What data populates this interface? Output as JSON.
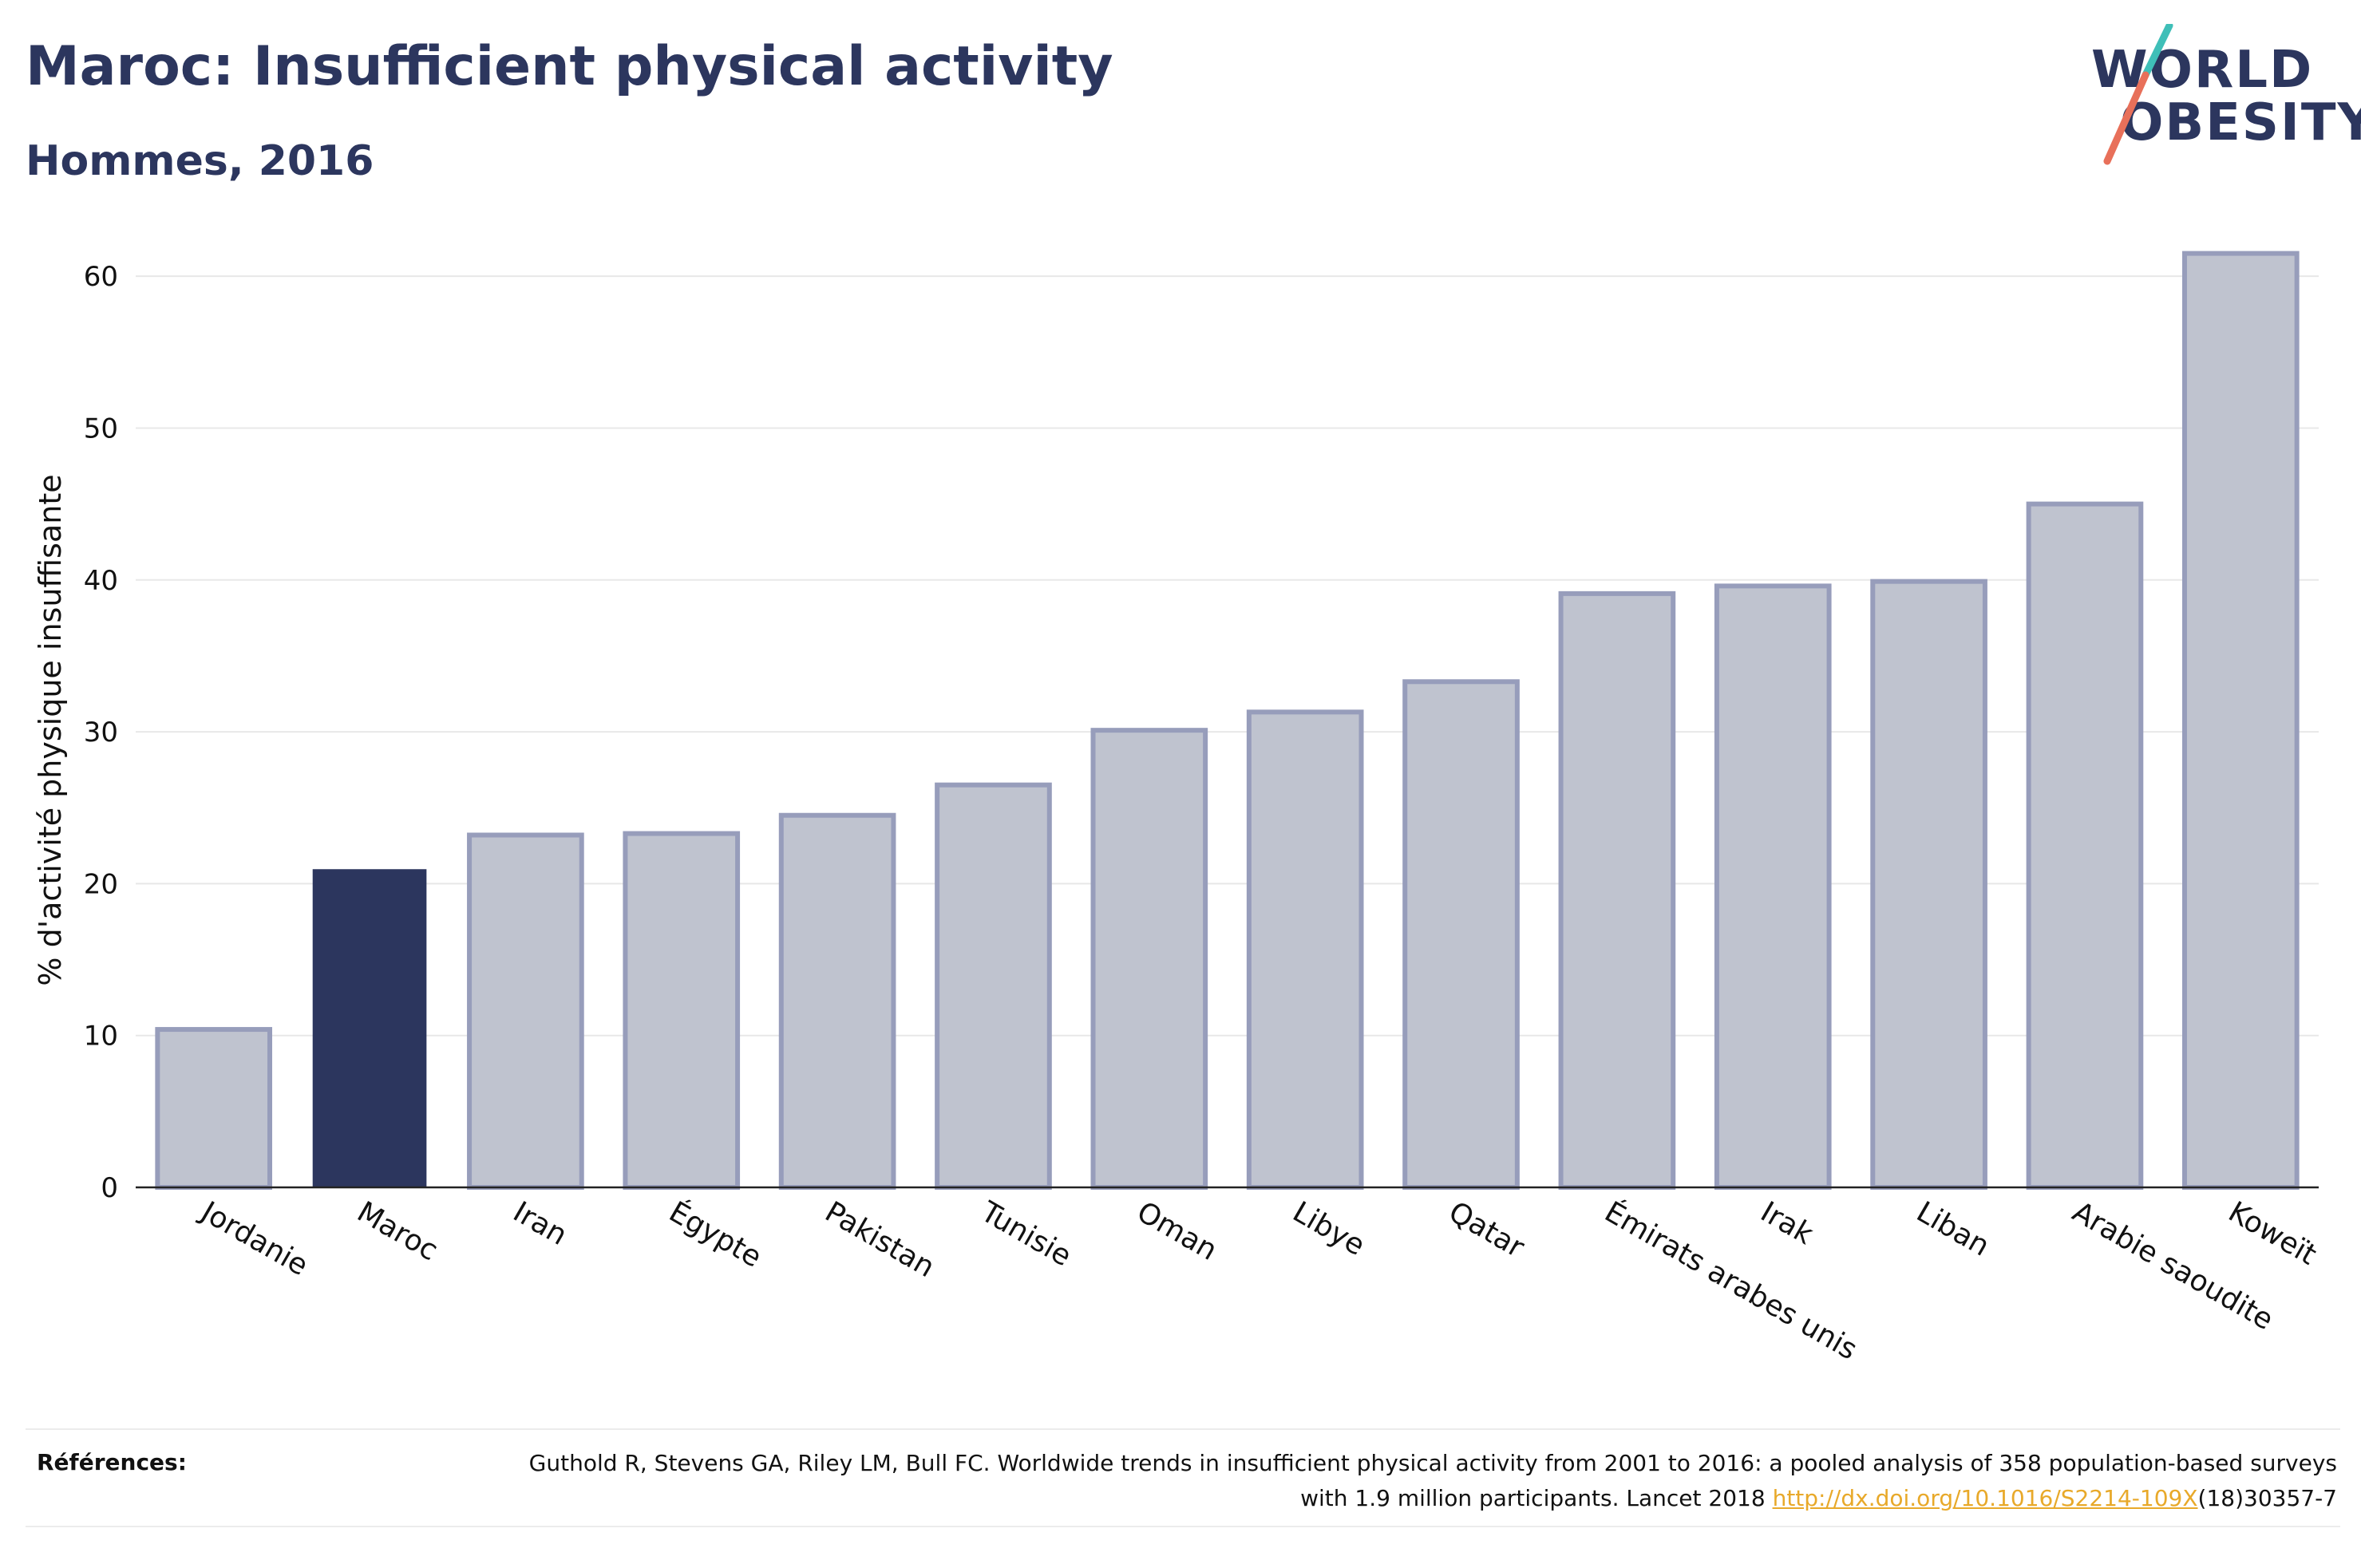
{
  "header": {
    "title": "Maroc: Insufficient physical activity",
    "subtitle": "Hommes, 2016"
  },
  "logo": {
    "line1": "WORLD",
    "line2": "OBESITY"
  },
  "colors": {
    "highlight": "#2c365e",
    "bar_fill": "#bfc3cf",
    "bar_stroke": "#979dbb",
    "grid": "#e8e8e8",
    "logo_teal": "#3fbfb8",
    "logo_coral": "#e8705a"
  },
  "chart_data": {
    "type": "bar",
    "title": "Maroc: Insufficient physical activity",
    "subtitle": "Hommes, 2016",
    "xlabel": "",
    "ylabel": "% d'activité physique insuffisante",
    "categories": [
      "Jordanie",
      "Maroc",
      "Iran",
      "Égypte",
      "Pakistan",
      "Tunisie",
      "Oman",
      "Libye",
      "Qatar",
      "Émirats arabes unis",
      "Irak",
      "Liban",
      "Arabie saoudite",
      "Koweït"
    ],
    "values": [
      10.4,
      20.9,
      23.2,
      23.3,
      24.5,
      26.5,
      30.1,
      31.3,
      33.3,
      39.1,
      39.6,
      39.9,
      45.0,
      61.5
    ],
    "highlight": "Maroc",
    "ylim": [
      0,
      64
    ],
    "yticks": [
      0,
      10,
      20,
      30,
      40,
      50,
      60
    ],
    "grid": true
  },
  "references": {
    "label": "Références:",
    "text_before_link": "Guthold R, Stevens GA, Riley LM, Bull FC. Worldwide trends in insufficient physical activity from 2001 to 2016: a pooled analysis of 358 population-based surveys with 1.9 million participants. Lancet 2018 ",
    "link": "http://dx.doi.org/10.1016/S2214-109X",
    "text_after_link": "(18)30357-7"
  }
}
